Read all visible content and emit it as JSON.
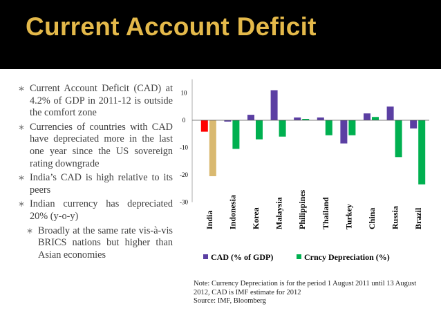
{
  "slide": {
    "title": "Current Account Deficit"
  },
  "bullets": [
    {
      "level": 1,
      "text": "Current Account Deficit (CAD) at 4.2% of GDP in 2011-12 is outside the comfort zone"
    },
    {
      "level": 1,
      "text": "Currencies of countries with CAD have depreciated more in the last one year since the US sovereign rating downgrade"
    },
    {
      "level": 1,
      "text": "India’s CAD is high relative to its peers"
    },
    {
      "level": 1,
      "text": "Indian currency has depreciated 20% (y-o-y)"
    },
    {
      "level": 2,
      "text": "Broadly at the same rate vis-à-vis BRICS nations but higher than Asian economies"
    }
  ],
  "bullet_symbol": "∗",
  "note": {
    "line1": "Note: Currency Depreciation is for the period 1 August 2011 until 13 August 2012, CAD is IMF estimate for 2012",
    "line2": "Source: IMF, Bloomberg"
  },
  "colors": {
    "title_bg": "#000000",
    "title_text": "#e4b94a",
    "cad": "#5b3fa3",
    "depreciation": "#00b050",
    "india_cad": "#ff0000",
    "india_depreciation": "#d9b970"
  },
  "chart_data": {
    "type": "bar",
    "categories": [
      "India",
      "Indonesia",
      "Korea",
      "Malaysia",
      "Philippines",
      "Thailand",
      "Turkey",
      "China",
      "Russia",
      "Brazil"
    ],
    "series": [
      {
        "name": "CAD (% of GDP)",
        "values": [
          -4.2,
          -0.5,
          2.0,
          11.0,
          1.0,
          1.0,
          -8.5,
          2.5,
          5.0,
          -3.0
        ]
      },
      {
        "name": "Crncy Depreciation (%)",
        "values": [
          -20.5,
          -10.5,
          -7.0,
          -6.0,
          0.5,
          -5.5,
          -5.5,
          1.2,
          -13.5,
          -23.5
        ]
      }
    ],
    "yticks": [
      10,
      0,
      -10,
      -20,
      -30
    ],
    "ylim": [
      -30,
      15
    ],
    "legend": [
      "CAD (% of GDP)",
      "Crncy Depreciation (%)"
    ],
    "legend_position": "bottom",
    "title": "",
    "xlabel": "",
    "ylabel": ""
  }
}
